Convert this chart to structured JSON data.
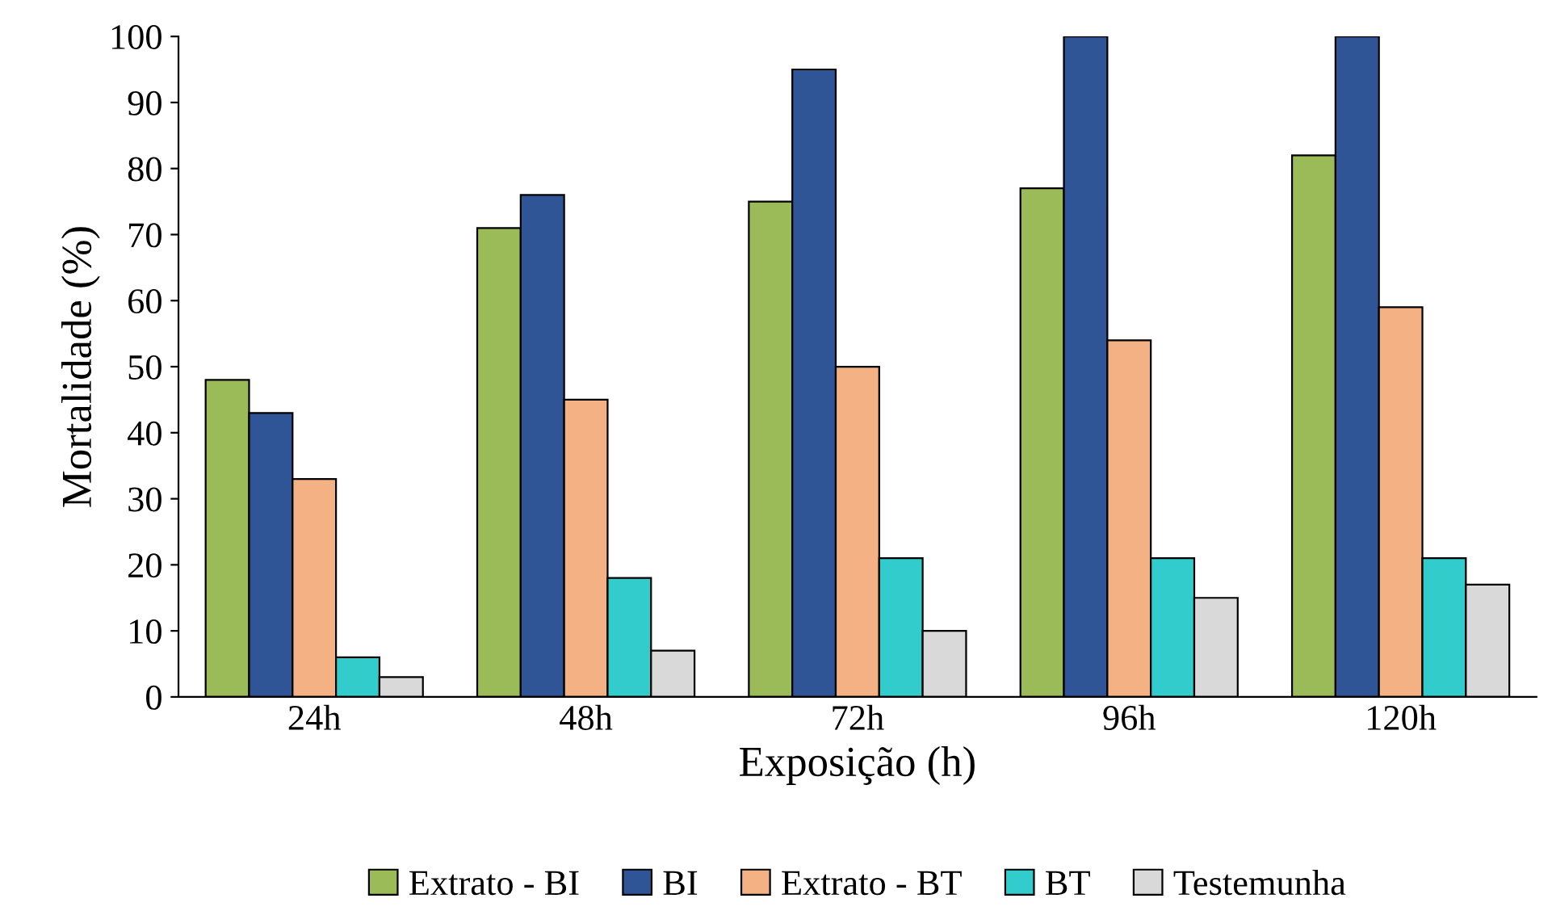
{
  "chart_data": {
    "type": "bar",
    "xlabel": "Exposição (h)",
    "ylabel": "Mortalidade (%)",
    "categories": [
      "24h",
      "48h",
      "72h",
      "96h",
      "120h"
    ],
    "series": [
      {
        "name": "Extrato - BI",
        "color": "#9bbb59",
        "values": [
          48,
          71,
          75,
          77,
          82
        ]
      },
      {
        "name": "BI",
        "color": "#2f5597",
        "values": [
          43,
          76,
          95,
          100,
          100
        ]
      },
      {
        "name": "Extrato - BT",
        "color": "#f4b183",
        "values": [
          33,
          45,
          50,
          54,
          59
        ]
      },
      {
        "name": "BT",
        "color": "#33cccc",
        "values": [
          6,
          18,
          21,
          21,
          21
        ]
      },
      {
        "name": "Testemunha",
        "color": "#d9d9d9",
        "values": [
          3,
          7,
          10,
          15,
          17
        ]
      }
    ],
    "ylim": [
      0,
      100
    ],
    "yticks": [
      0,
      10,
      20,
      30,
      40,
      50,
      60,
      70,
      80,
      90,
      100
    ],
    "grid": false,
    "legend": "bottom"
  }
}
